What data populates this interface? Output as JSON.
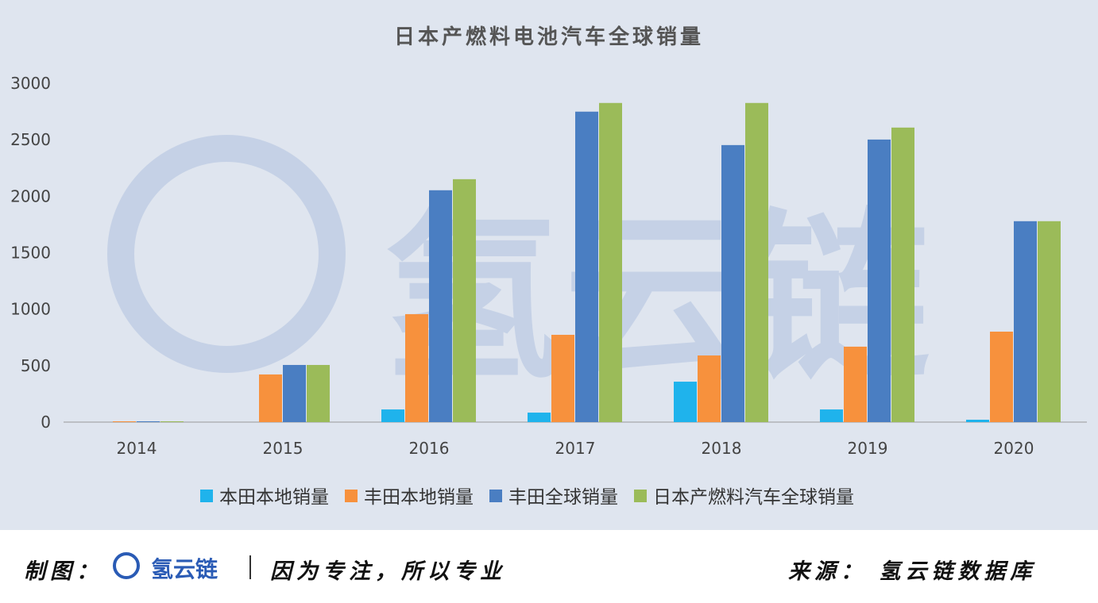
{
  "chart_data": {
    "type": "bar",
    "title": "日本产燃料电池汽车全球销量",
    "categories": [
      "2014",
      "2015",
      "2016",
      "2017",
      "2018",
      "2019",
      "2020"
    ],
    "series": [
      {
        "name": "本田本地销量",
        "color": "#1fb3ec",
        "values": [
          0,
          0,
          112,
          84,
          358,
          112,
          21
        ]
      },
      {
        "name": "丰田本地销量",
        "color": "#f7913d",
        "values": [
          7,
          422,
          956,
          773,
          590,
          668,
          801
        ]
      },
      {
        "name": "丰田全球销量",
        "color": "#4a7ec2",
        "values": [
          7,
          506,
          2053,
          2749,
          2453,
          2502,
          1779
        ]
      },
      {
        "name": "日本产燃料汽车全球销量",
        "color": "#9bbb59",
        "values": [
          7,
          506,
          2151,
          2826,
          2826,
          2608,
          1779
        ]
      }
    ],
    "yticks": [
      "0",
      "500",
      "1000",
      "1500",
      "2000",
      "2500",
      "3000"
    ],
    "ylim": [
      0,
      3000
    ],
    "xlabel": "",
    "ylabel": "",
    "legend": "bottom",
    "grid": false
  },
  "watermark": "氢云链",
  "footer": {
    "made_by": "制图：",
    "logo": "氢云链",
    "slogan": "因为专注，所以专业",
    "source": "来源：  氢云链数据库"
  }
}
